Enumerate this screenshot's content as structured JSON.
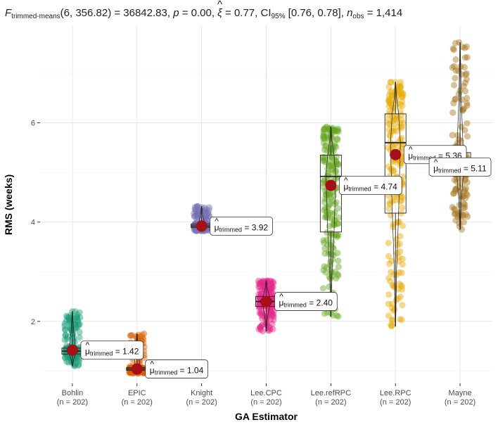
{
  "chart_data": {
    "type": "violin-box-scatter",
    "title_parts": {
      "F": "F",
      "F_sub": "trimmed-means",
      "F_args": "(6, 356.82) = 36842.83, ",
      "p": "p",
      "p_val": " = 0.00, ",
      "xi": "ξ",
      "xi_hat": "^",
      "xi_val": " = 0.77, CI",
      "ci_sub": "95%",
      "ci_val": " [0.76, 0.78], ",
      "n": "n",
      "n_sub": "obs",
      "n_val": " = 1,414"
    },
    "xlabel": "GA Estimator",
    "ylabel": "RMS (weeks)",
    "ylim": [
      0.75,
      7.95
    ],
    "yticks": [
      "2",
      "4",
      "6"
    ],
    "mean_label": {
      "mu": "μ",
      "hat": "^",
      "sub": "trimmed",
      "eq": " = "
    },
    "groups": [
      {
        "name": "Bohlin",
        "n_label": "(n = 202)",
        "color": "#1b9e77",
        "min": 1.1,
        "q1": 1.34,
        "median": 1.4,
        "q3": 1.46,
        "max": 2.2,
        "mean": 1.42,
        "mean_text": "1.42"
      },
      {
        "name": "EPIC",
        "n_label": "(n = 202)",
        "color": "#d95f02",
        "min": 0.95,
        "q1": 1.01,
        "median": 1.04,
        "q3": 1.07,
        "max": 1.75,
        "mean": 1.04,
        "mean_text": "1.04"
      },
      {
        "name": "Knight",
        "n_label": "(n = 202)",
        "color": "#7570b3",
        "min": 3.82,
        "q1": 3.89,
        "median": 3.92,
        "q3": 3.96,
        "max": 4.32,
        "mean": 3.92,
        "mean_text": "3.92"
      },
      {
        "name": "Lee.CPC",
        "n_label": "(n = 202)",
        "color": "#e7298a",
        "min": 1.8,
        "q1": 2.3,
        "median": 2.4,
        "q3": 2.5,
        "max": 2.82,
        "mean": 2.4,
        "mean_text": "2.40"
      },
      {
        "name": "Lee.refRPC",
        "n_label": "(n = 202)",
        "color": "#66a61e",
        "min": 2.1,
        "q1": 3.8,
        "median": 4.92,
        "q3": 5.35,
        "max": 5.92,
        "mean": 4.74,
        "mean_text": "4.74"
      },
      {
        "name": "Lee.RPC",
        "n_label": "(n = 202)",
        "color": "#e6ab02",
        "min": 1.9,
        "q1": 4.18,
        "median": 5.6,
        "q3": 6.18,
        "max": 6.82,
        "mean": 5.36,
        "mean_text": "5.36"
      },
      {
        "name": "Mayne",
        "n_label": "(n = 202)",
        "color": "#a6761d",
        "min": 3.85,
        "q1": 4.95,
        "median": 5.18,
        "q3": 5.4,
        "max": 7.62,
        "mean": 5.11,
        "mean_text": "5.11"
      }
    ],
    "points_per_group": 202
  }
}
